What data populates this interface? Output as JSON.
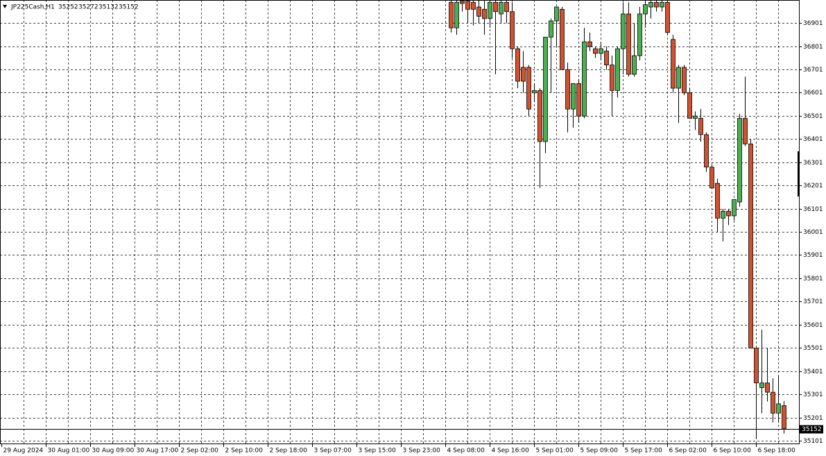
{
  "chart_data": {
    "type": "candlestick",
    "symbol": "JP225Cash,H1",
    "header_values": [
      35252,
      35272,
      35132,
      35152
    ],
    "last_price": 35152,
    "ylim": [
      35086,
      37000
    ],
    "yticks": [
      36901,
      36801,
      36701,
      36601,
      36501,
      36401,
      36301,
      36201,
      36101,
      36001,
      35901,
      35801,
      35701,
      35601,
      35501,
      35401,
      35301,
      35201,
      35101
    ],
    "xlim": [
      0,
      144
    ],
    "xticks": [
      {
        "value": 0,
        "label": "29 Aug 2024"
      },
      {
        "value": 8,
        "label": "30 Aug 01:00"
      },
      {
        "value": 16,
        "label": "30 Aug 09:00"
      },
      {
        "value": 24,
        "label": "30 Aug 17:00"
      },
      {
        "value": 32,
        "label": "2 Sep 02:00"
      },
      {
        "value": 40,
        "label": "2 Sep 10:00"
      },
      {
        "value": 48,
        "label": "2 Sep 18:00"
      },
      {
        "value": 56,
        "label": "3 Sep 07:00"
      },
      {
        "value": 64,
        "label": "3 Sep 15:00"
      },
      {
        "value": 72,
        "label": "3 Sep 23:00"
      },
      {
        "value": 80,
        "label": "4 Sep 08:00"
      },
      {
        "value": 88,
        "label": "4 Sep 16:00"
      },
      {
        "value": 96,
        "label": "5 Sep 01:00"
      },
      {
        "value": 104,
        "label": "5 Sep 09:00"
      },
      {
        "value": 112,
        "label": "5 Sep 17:00"
      },
      {
        "value": 120,
        "label": "6 Sep 02:00"
      },
      {
        "value": 128,
        "label": "6 Sep 10:00"
      },
      {
        "value": 136,
        "label": "6 Sep 18:00"
      }
    ],
    "bull_color": "#4caf50",
    "bear_color": "#d2522f",
    "grid": true,
    "x": [
      81,
      82,
      83,
      84,
      85,
      86,
      87,
      88,
      89,
      90,
      91,
      92,
      93,
      94,
      95,
      96,
      97,
      98,
      99,
      100,
      101,
      102,
      103,
      104,
      105,
      106,
      107,
      108,
      109,
      110,
      111,
      112,
      113,
      114,
      115,
      116,
      117,
      118,
      119,
      120,
      121,
      122,
      123,
      124,
      125,
      126,
      127,
      128,
      129,
      130,
      131,
      132,
      133,
      134,
      135,
      136,
      137,
      138,
      139,
      140,
      141
    ],
    "open": [
      36990,
      36880,
      36995,
      36995,
      36990,
      36970,
      36960,
      36920,
      36990,
      36940,
      36990,
      36950,
      36790,
      36710,
      36710,
      36600,
      36610,
      36390,
      36840,
      36910,
      36960,
      36700,
      36530,
      36640,
      36500,
      36820,
      36790,
      36770,
      36780,
      36720,
      36610,
      36790,
      36940,
      36680,
      36760,
      36940,
      36970,
      36990,
      36970,
      36990,
      36830,
      36620,
      36710,
      36600,
      36490,
      36490,
      36420,
      36280,
      36210,
      36060,
      36090,
      36070,
      36130,
      36490,
      36380,
      35500,
      35330,
      35350,
      35310,
      35220,
      35252
    ],
    "high": [
      37000,
      37000,
      37000,
      37000,
      37000,
      37000,
      37000,
      37000,
      37000,
      37000,
      37000,
      36990,
      36800,
      36780,
      36720,
      36640,
      36620,
      36840,
      36920,
      36970,
      36970,
      36730,
      36640,
      36660,
      36880,
      36860,
      36800,
      36820,
      36800,
      36760,
      36800,
      36990,
      36990,
      36900,
      36970,
      37000,
      37000,
      37000,
      37000,
      37000,
      36850,
      36720,
      36720,
      36620,
      36520,
      36530,
      36430,
      36290,
      36230,
      36100,
      36100,
      36140,
      36510,
      36670,
      36400,
      35500,
      35580,
      35500,
      35370,
      35380,
      35272
    ],
    "low": [
      36860,
      36850,
      36950,
      36900,
      36890,
      36900,
      36850,
      36880,
      36680,
      36900,
      36900,
      36750,
      36620,
      36600,
      36500,
      36560,
      36190,
      36340,
      36600,
      36800,
      36700,
      36430,
      36450,
      36470,
      36490,
      36780,
      36750,
      36740,
      36700,
      36500,
      36580,
      36680,
      36670,
      36670,
      36740,
      36880,
      36920,
      36950,
      36950,
      36850,
      36600,
      36470,
      36590,
      36490,
      36440,
      36390,
      36260,
      36190,
      36000,
      35960,
      36030,
      36050,
      36110,
      36370,
      35500,
      35110,
      35220,
      35270,
      35180,
      35180,
      35132
    ],
    "close": [
      36880,
      36990,
      36985,
      36960,
      36960,
      36930,
      36920,
      36990,
      36950,
      36990,
      36950,
      36790,
      36650,
      36650,
      36530,
      36610,
      36390,
      36840,
      36910,
      36970,
      36700,
      36530,
      36640,
      36500,
      36820,
      36800,
      36770,
      36790,
      36720,
      36610,
      36790,
      36940,
      36680,
      36760,
      36940,
      36980,
      36990,
      36970,
      36990,
      36860,
      36620,
      36710,
      36600,
      36490,
      36500,
      36420,
      36280,
      36190,
      36060,
      36090,
      36070,
      36140,
      36490,
      36380,
      35500,
      35350,
      35350,
      35310,
      35220,
      35260,
      35152
    ]
  }
}
